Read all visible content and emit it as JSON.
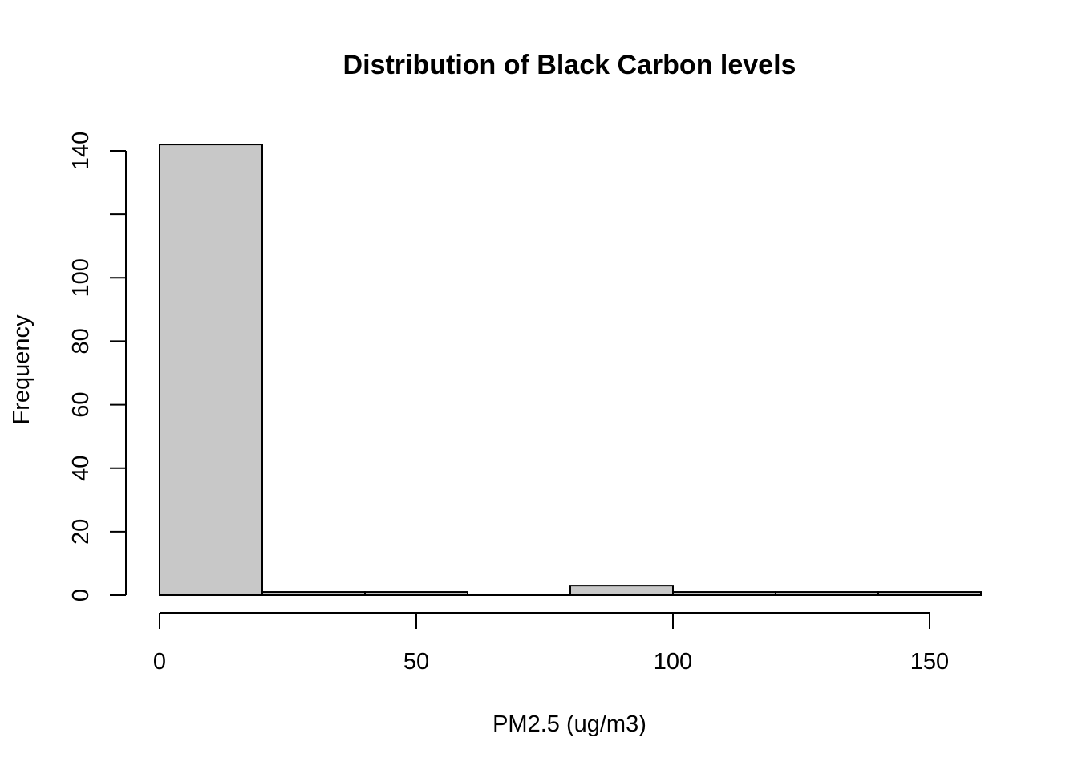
{
  "chart_data": {
    "type": "bar",
    "title": "Distribution of Black Carbon levels",
    "xlabel": "PM2.5 (ug/m3)",
    "ylabel": "Frequency",
    "bin_edges": [
      0,
      20,
      40,
      60,
      80,
      100,
      120,
      140,
      160
    ],
    "values": [
      142,
      1,
      1,
      0,
      3,
      1,
      1,
      1
    ],
    "xlim": [
      0,
      160
    ],
    "ylim": [
      0,
      142
    ],
    "x_ticks": [
      0,
      50,
      100,
      150
    ],
    "x_tick_labels": [
      "0",
      "50",
      "100",
      "150"
    ],
    "y_ticks": [
      0,
      20,
      40,
      60,
      80,
      100,
      120,
      140
    ],
    "y_tick_labels": [
      "0",
      "20",
      "40",
      "60",
      "80",
      "100",
      "",
      "140"
    ],
    "bar_fill": "#c8c8c8",
    "bar_stroke": "#000000",
    "grid": false,
    "legend": "none"
  }
}
